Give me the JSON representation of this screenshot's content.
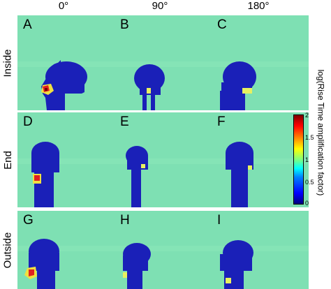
{
  "columns": [
    "0°",
    "90°",
    "180°"
  ],
  "rows": [
    "Inside",
    "End",
    "Outside"
  ],
  "panels": [
    {
      "label": "A"
    },
    {
      "label": "B"
    },
    {
      "label": "C"
    },
    {
      "label": "D"
    },
    {
      "label": "E"
    },
    {
      "label": "F"
    },
    {
      "label": "G"
    },
    {
      "label": "H"
    },
    {
      "label": "I"
    }
  ],
  "colorbar": {
    "title": "log(Rise Time amplification factor)",
    "ticks": [
      "2",
      "1.5",
      "1",
      "0.5",
      "0"
    ],
    "colors": {
      "background": "#7ee0b3",
      "head": "#1a20b8",
      "hot": "#e02020",
      "warm": "#f0e040"
    }
  }
}
